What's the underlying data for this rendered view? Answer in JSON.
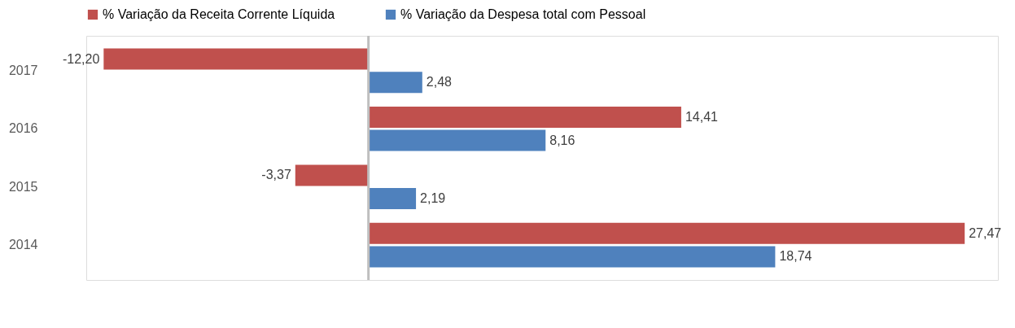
{
  "chart_data": {
    "type": "bar",
    "orientation": "horizontal",
    "categories": [
      "2017",
      "2016",
      "2015",
      "2014"
    ],
    "series": [
      {
        "name": "% Variação da Receita Corrente Líquida",
        "color": "#c0504d",
        "values": [
          -12.2,
          14.41,
          -3.37,
          27.47
        ],
        "value_labels": [
          "-12,20",
          "14,41",
          "-3,37",
          "27,47"
        ]
      },
      {
        "name": "% Variação da Despesa total com Pessoal",
        "color": "#4f81bd",
        "values": [
          2.48,
          8.16,
          2.19,
          18.74
        ],
        "value_labels": [
          "2,48",
          "8,16",
          "2,19",
          "18,74"
        ]
      }
    ],
    "xlim": [
      -13,
      29
    ],
    "tick_labels": "y",
    "legend": "top",
    "grid": false
  }
}
